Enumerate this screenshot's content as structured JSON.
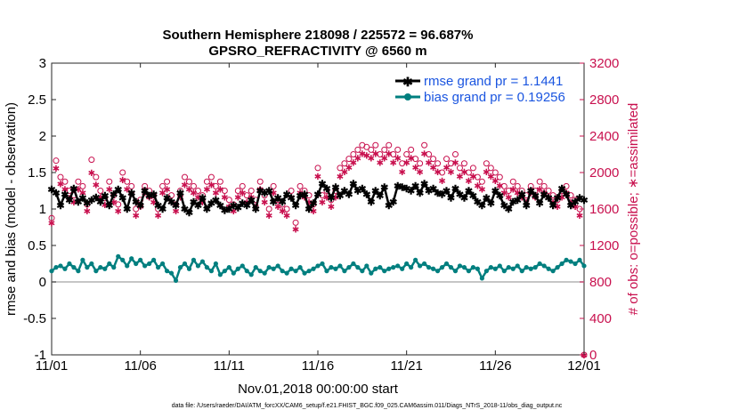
{
  "chart_data": {
    "type": "line",
    "title": "Southern Hemisphere 218098 / 225572 = 96.687%",
    "subtitle": "GPSRO_REFRACTIVITY @ 6560 m",
    "xlabel": "Nov.01,2018 00:00:00 start",
    "ylabel": "rmse and bias (model - observation)",
    "ylabel_right": "# of obs: o=possible; ∗=assimilated",
    "footnote": "data file: /Users/raeder/DAI/ATM_forcXX/CAM6_setup/f.e21.FHIST_BGC.f09_025.CAM6assim.011/Diags_NTrS_2018-11/obs_diag_output.nc",
    "xlim": [
      0,
      30
    ],
    "ylim": [
      -1,
      3
    ],
    "ylim_right": [
      0,
      3200
    ],
    "x_ticks": [
      0,
      5,
      10,
      15,
      20,
      25,
      30
    ],
    "x_tick_labels": [
      "11/01",
      "11/06",
      "11/11",
      "11/16",
      "11/21",
      "11/26",
      "12/01"
    ],
    "y_ticks": [
      -1,
      -0.5,
      0,
      0.5,
      1,
      1.5,
      2,
      2.5,
      3
    ],
    "y_tick_labels": [
      "-1",
      "-0.5",
      "0",
      "0.5",
      "1",
      "1.5",
      "2",
      "2.5",
      "3"
    ],
    "y_right_ticks": [
      0,
      400,
      800,
      1200,
      1600,
      2000,
      2400,
      2800,
      3200
    ],
    "y_right_tick_labels": [
      "0",
      "400",
      "800",
      "1200",
      "1600",
      "2000",
      "2400",
      "2800",
      "3200"
    ],
    "colors": {
      "rmse": "#000000",
      "bias": "#007f7f",
      "obs": "#c8104e",
      "zero_line": "#b3b3b3",
      "legend_text": "#1a55e0"
    },
    "legend": [
      {
        "name": "rmse grand pr = 1.1441",
        "series": "rmse"
      },
      {
        "name": "bias grand pr = 0.19256",
        "series": "bias"
      }
    ],
    "series": [
      {
        "name": "rmse",
        "x": [
          0.0,
          0.25,
          0.5,
          0.75,
          1.0,
          1.25,
          1.5,
          1.75,
          2.0,
          2.25,
          2.5,
          2.75,
          3.0,
          3.25,
          3.5,
          3.75,
          4.0,
          4.25,
          4.5,
          4.75,
          5.0,
          5.25,
          5.5,
          5.75,
          6.0,
          6.25,
          6.5,
          6.75,
          7.0,
          7.25,
          7.5,
          7.75,
          8.0,
          8.25,
          8.5,
          8.75,
          9.0,
          9.25,
          9.5,
          9.75,
          10.0,
          10.25,
          10.5,
          10.75,
          11.0,
          11.25,
          11.5,
          11.75,
          12.0,
          12.25,
          12.5,
          12.75,
          13.0,
          13.25,
          13.5,
          13.75,
          14.0,
          14.25,
          14.5,
          14.75,
          15.0,
          15.25,
          15.5,
          15.75,
          16.0,
          16.25,
          16.5,
          16.75,
          17.0,
          17.25,
          17.5,
          17.75,
          18.0,
          18.25,
          18.5,
          18.75,
          19.0,
          19.25,
          19.5,
          19.75,
          20.0,
          20.25,
          20.5,
          20.75,
          21.0,
          21.25,
          21.5,
          21.75,
          22.0,
          22.25,
          22.5,
          22.75,
          23.0,
          23.25,
          23.5,
          23.75,
          24.0,
          24.25,
          24.5,
          24.75,
          25.0,
          25.25,
          25.5,
          25.75,
          26.0,
          26.25,
          26.5,
          26.75,
          27.0,
          27.25,
          27.5,
          27.75,
          28.0,
          28.25,
          28.5,
          28.75,
          29.0,
          29.25,
          29.5,
          29.75,
          30.0
        ],
        "values": [
          1.27,
          1.22,
          1.05,
          1.2,
          1.12,
          1.28,
          1.1,
          1.15,
          1.08,
          1.12,
          1.16,
          1.1,
          1.18,
          1.05,
          1.2,
          1.27,
          1.15,
          1.0,
          1.22,
          1.1,
          1.05,
          1.25,
          1.18,
          1.2,
          1.05,
          1.0,
          1.15,
          1.1,
          1.05,
          1.22,
          1.0,
          0.95,
          1.1,
          1.05,
          1.15,
          1.0,
          1.08,
          1.12,
          1.05,
          0.98,
          1.0,
          1.05,
          1.02,
          1.08,
          1.05,
          1.12,
          1.0,
          1.25,
          1.22,
          1.25,
          1.1,
          1.15,
          1.1,
          1.2,
          1.15,
          1.05,
          1.18,
          1.2,
          1.0,
          1.08,
          1.2,
          1.35,
          1.28,
          1.15,
          1.3,
          1.18,
          1.25,
          1.2,
          1.35,
          1.25,
          1.28,
          1.2,
          1.1,
          1.25,
          1.18,
          1.3,
          1.05,
          1.1,
          1.32,
          1.3,
          1.28,
          1.25,
          1.32,
          1.22,
          1.35,
          1.25,
          1.28,
          1.22,
          1.2,
          1.25,
          1.15,
          1.28,
          1.2,
          1.15,
          1.25,
          1.18,
          1.1,
          1.05,
          1.15,
          1.08,
          1.25,
          1.18,
          1.05,
          1.0,
          1.1,
          1.12,
          1.2,
          1.05,
          1.25,
          1.18,
          1.08,
          1.2,
          1.15,
          1.05,
          1.15,
          1.28,
          1.2,
          1.05,
          1.1,
          1.15,
          1.12
        ]
      },
      {
        "name": "bias",
        "x": [
          0.0,
          0.25,
          0.5,
          0.75,
          1.0,
          1.25,
          1.5,
          1.75,
          2.0,
          2.25,
          2.5,
          2.75,
          3.0,
          3.25,
          3.5,
          3.75,
          4.0,
          4.25,
          4.5,
          4.75,
          5.0,
          5.25,
          5.5,
          5.75,
          6.0,
          6.25,
          6.5,
          6.75,
          7.0,
          7.25,
          7.5,
          7.75,
          8.0,
          8.25,
          8.5,
          8.75,
          9.0,
          9.25,
          9.5,
          9.75,
          10.0,
          10.25,
          10.5,
          10.75,
          11.0,
          11.25,
          11.5,
          11.75,
          12.0,
          12.25,
          12.5,
          12.75,
          13.0,
          13.25,
          13.5,
          13.75,
          14.0,
          14.25,
          14.5,
          14.75,
          15.0,
          15.25,
          15.5,
          15.75,
          16.0,
          16.25,
          16.5,
          16.75,
          17.0,
          17.25,
          17.5,
          17.75,
          18.0,
          18.25,
          18.5,
          18.75,
          19.0,
          19.25,
          19.5,
          19.75,
          20.0,
          20.25,
          20.5,
          20.75,
          21.0,
          21.25,
          21.5,
          21.75,
          22.0,
          22.25,
          22.5,
          22.75,
          23.0,
          23.25,
          23.5,
          23.75,
          24.0,
          24.25,
          24.5,
          24.75,
          25.0,
          25.25,
          25.5,
          25.75,
          26.0,
          26.25,
          26.5,
          26.75,
          27.0,
          27.25,
          27.5,
          27.75,
          28.0,
          28.25,
          28.5,
          28.75,
          29.0,
          29.25,
          29.5,
          29.75,
          30.0
        ],
        "values": [
          0.15,
          0.2,
          0.22,
          0.18,
          0.25,
          0.2,
          0.15,
          0.3,
          0.2,
          0.25,
          0.15,
          0.2,
          0.18,
          0.25,
          0.2,
          0.35,
          0.3,
          0.22,
          0.32,
          0.25,
          0.3,
          0.22,
          0.25,
          0.3,
          0.2,
          0.25,
          0.15,
          0.12,
          0.02,
          0.2,
          0.25,
          0.18,
          0.3,
          0.22,
          0.28,
          0.2,
          0.15,
          0.25,
          0.1,
          0.15,
          0.2,
          0.12,
          0.18,
          0.22,
          0.15,
          0.1,
          0.2,
          0.15,
          0.12,
          0.2,
          0.18,
          0.22,
          0.15,
          0.12,
          0.18,
          0.15,
          0.2,
          0.12,
          0.15,
          0.18,
          0.22,
          0.25,
          0.15,
          0.2,
          0.18,
          0.22,
          0.15,
          0.2,
          0.25,
          0.2,
          0.15,
          0.22,
          0.12,
          0.18,
          0.2,
          0.15,
          0.18,
          0.2,
          0.22,
          0.18,
          0.25,
          0.2,
          0.3,
          0.22,
          0.25,
          0.2,
          0.18,
          0.15,
          0.2,
          0.25,
          0.2,
          0.15,
          0.22,
          0.2,
          0.15,
          0.2,
          0.18,
          0.05,
          0.15,
          0.2,
          0.18,
          0.22,
          0.15,
          0.2,
          0.18,
          0.22,
          0.15,
          0.2,
          0.18,
          0.2,
          0.25,
          0.22,
          0.18,
          0.15,
          0.2,
          0.25,
          0.3,
          0.28,
          0.25,
          0.3,
          0.22
        ]
      },
      {
        "name": "obs possible (o)",
        "axis": "right",
        "x": [
          0.0,
          0.25,
          0.5,
          0.75,
          1.0,
          1.25,
          1.5,
          1.75,
          2.0,
          2.25,
          2.5,
          2.75,
          3.0,
          3.25,
          3.5,
          3.75,
          4.0,
          4.25,
          4.5,
          4.75,
          5.0,
          5.25,
          5.5,
          5.75,
          6.0,
          6.25,
          6.5,
          6.75,
          7.0,
          7.25,
          7.5,
          7.75,
          8.0,
          8.25,
          8.5,
          8.75,
          9.0,
          9.25,
          9.5,
          9.75,
          10.0,
          10.25,
          10.5,
          10.75,
          11.0,
          11.25,
          11.5,
          11.75,
          12.0,
          12.25,
          12.5,
          12.75,
          13.0,
          13.25,
          13.5,
          13.75,
          14.0,
          14.25,
          14.5,
          14.75,
          15.0,
          15.25,
          15.5,
          15.75,
          16.0,
          16.25,
          16.5,
          16.75,
          17.0,
          17.25,
          17.5,
          17.75,
          18.0,
          18.25,
          18.5,
          18.75,
          19.0,
          19.25,
          19.5,
          19.75,
          20.0,
          20.25,
          20.5,
          20.75,
          21.0,
          21.25,
          21.5,
          21.75,
          22.0,
          22.25,
          22.5,
          22.75,
          23.0,
          23.25,
          23.5,
          23.75,
          24.0,
          24.25,
          24.5,
          24.75,
          25.0,
          25.25,
          25.5,
          25.75,
          26.0,
          26.25,
          26.5,
          26.75,
          27.0,
          27.25,
          27.5,
          27.75,
          28.0,
          28.25,
          28.5,
          28.75,
          29.0,
          29.25,
          29.5,
          29.75,
          30.0
        ],
        "values": [
          1500,
          2130,
          1950,
          1900,
          1800,
          1750,
          1900,
          1850,
          1650,
          2140,
          1950,
          1800,
          1720,
          1900,
          1750,
          1650,
          2000,
          1900,
          1850,
          1600,
          1700,
          1850,
          1800,
          1750,
          1600,
          1850,
          1900,
          1750,
          1650,
          1800,
          1950,
          1900,
          1850,
          1800,
          1750,
          1900,
          1950,
          1850,
          1900,
          1800,
          1700,
          1650,
          1800,
          1850,
          1750,
          1800,
          1700,
          1900,
          1750,
          1600,
          1850,
          1700,
          1650,
          1600,
          1800,
          1450,
          1850,
          1800,
          1750,
          1650,
          2050,
          1750,
          1800,
          1700,
          1800,
          2050,
          2100,
          2150,
          2200,
          2250,
          2300,
          2280,
          2250,
          2300,
          2200,
          2250,
          2300,
          2200,
          2250,
          2100,
          2200,
          2250,
          2150,
          2100,
          2300,
          2200,
          2150,
          2100,
          2000,
          2150,
          2100,
          2200,
          2050,
          2100,
          2000,
          2050,
          1950,
          1900,
          2100,
          2050,
          2000,
          1950,
          1850,
          1800,
          1900,
          1850,
          1800,
          1750,
          1850,
          1800,
          1900,
          1850,
          1800,
          1750,
          1700,
          1800,
          1850,
          1750,
          1700,
          1600,
          0
        ]
      },
      {
        "name": "obs assimilated (*)",
        "axis": "right",
        "x": [
          0.0,
          0.25,
          0.5,
          0.75,
          1.0,
          1.25,
          1.5,
          1.75,
          2.0,
          2.25,
          2.5,
          2.75,
          3.0,
          3.25,
          3.5,
          3.75,
          4.0,
          4.25,
          4.5,
          4.75,
          5.0,
          5.25,
          5.5,
          5.75,
          6.0,
          6.25,
          6.5,
          6.75,
          7.0,
          7.25,
          7.5,
          7.75,
          8.0,
          8.25,
          8.5,
          8.75,
          9.0,
          9.25,
          9.5,
          9.75,
          10.0,
          10.25,
          10.5,
          10.75,
          11.0,
          11.25,
          11.5,
          11.75,
          12.0,
          12.25,
          12.5,
          12.75,
          13.0,
          13.25,
          13.5,
          13.75,
          14.0,
          14.25,
          14.5,
          14.75,
          15.0,
          15.25,
          15.5,
          15.75,
          16.0,
          16.25,
          16.5,
          16.75,
          17.0,
          17.25,
          17.5,
          17.75,
          18.0,
          18.25,
          18.5,
          18.75,
          19.0,
          19.25,
          19.5,
          19.75,
          20.0,
          20.25,
          20.5,
          20.75,
          21.0,
          21.25,
          21.5,
          21.75,
          22.0,
          22.25,
          22.5,
          22.75,
          23.0,
          23.25,
          23.5,
          23.75,
          24.0,
          24.25,
          24.5,
          24.75,
          25.0,
          25.25,
          25.5,
          25.75,
          26.0,
          26.25,
          26.5,
          26.75,
          27.0,
          27.25,
          27.5,
          27.75,
          28.0,
          28.25,
          28.5,
          28.75,
          29.0,
          29.25,
          29.5,
          29.75,
          30.0
        ],
        "values": [
          1450,
          2050,
          1880,
          1820,
          1720,
          1680,
          1820,
          1780,
          1580,
          2000,
          1870,
          1730,
          1650,
          1820,
          1680,
          1580,
          1920,
          1820,
          1770,
          1530,
          1630,
          1780,
          1730,
          1680,
          1530,
          1780,
          1820,
          1680,
          1580,
          1730,
          1870,
          1820,
          1780,
          1730,
          1680,
          1820,
          1870,
          1780,
          1820,
          1730,
          1630,
          1580,
          1730,
          1780,
          1680,
          1730,
          1630,
          1820,
          1680,
          1530,
          1780,
          1630,
          1580,
          1530,
          1730,
          1380,
          1780,
          1730,
          1680,
          1580,
          1960,
          1680,
          1730,
          1630,
          1730,
          1960,
          2010,
          2060,
          2110,
          2160,
          2210,
          2190,
          2160,
          2210,
          2110,
          2160,
          2210,
          2110,
          2160,
          2010,
          2110,
          2160,
          2060,
          2010,
          2210,
          2110,
          2060,
          2010,
          1910,
          2060,
          2010,
          2110,
          1960,
          2010,
          1910,
          1960,
          1860,
          1820,
          2010,
          1960,
          1910,
          1860,
          1780,
          1730,
          1820,
          1780,
          1730,
          1680,
          1780,
          1730,
          1820,
          1780,
          1730,
          1680,
          1630,
          1730,
          1780,
          1680,
          1630,
          1530,
          0
        ]
      }
    ]
  }
}
